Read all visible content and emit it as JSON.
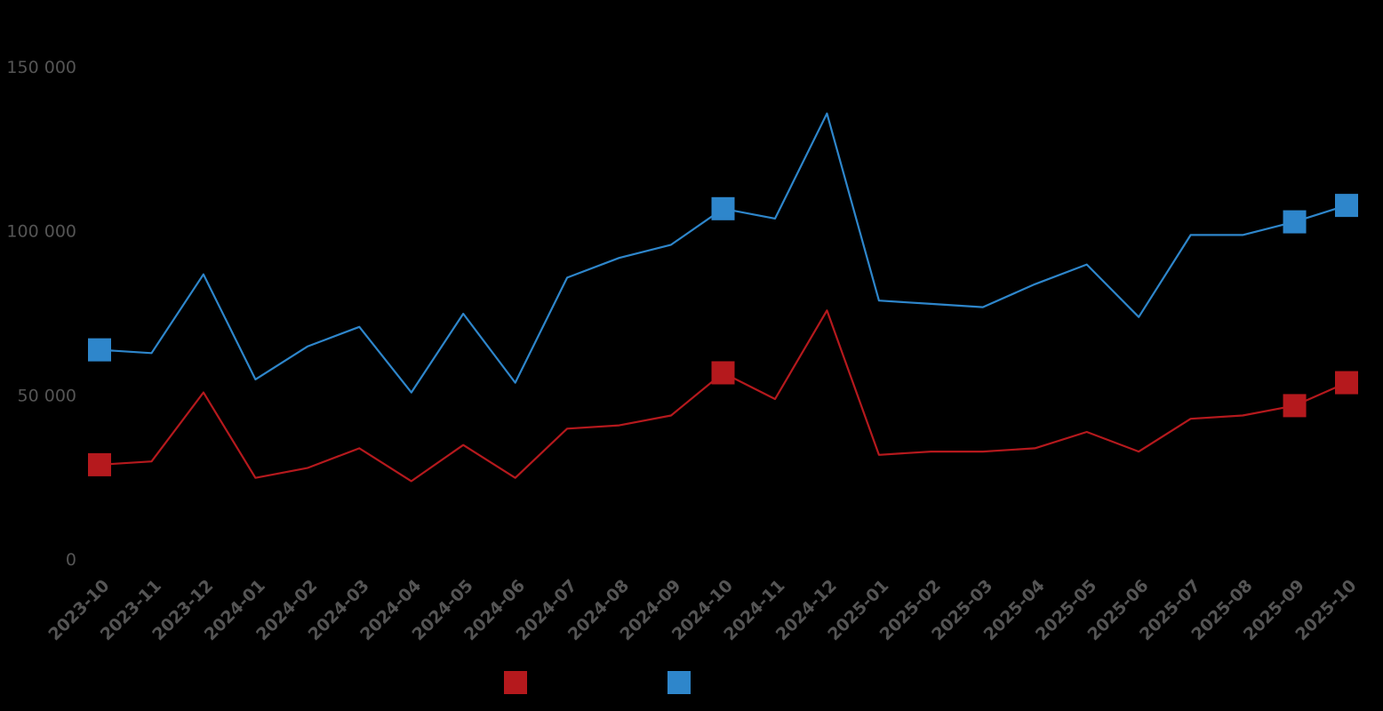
{
  "chart_data": {
    "type": "line",
    "title": "",
    "xlabel": "",
    "ylabel": "",
    "categories": [
      "2023-10",
      "2023-11",
      "2023-12",
      "2024-01",
      "2024-02",
      "2024-03",
      "2024-04",
      "2024-05",
      "2024-06",
      "2024-07",
      "2024-08",
      "2024-09",
      "2024-10",
      "2024-11",
      "2024-12",
      "2025-01",
      "2025-02",
      "2025-03",
      "2025-04",
      "2025-05",
      "2025-06",
      "2025-07",
      "2025-08",
      "2025-09",
      "2025-10"
    ],
    "ylim": [
      0,
      150000
    ],
    "yticks": [
      0,
      50000,
      100000,
      150000
    ],
    "ytick_labels": [
      "0",
      "50 000",
      "100 000",
      "150 000"
    ],
    "grid": false,
    "legend_position": "bottom-center",
    "series": [
      {
        "name": "",
        "color": "#b5191d",
        "marker_indices": [
          0,
          12,
          23,
          24
        ],
        "values": [
          29000,
          30000,
          51000,
          25000,
          28000,
          34000,
          24000,
          35000,
          25000,
          40000,
          41000,
          44000,
          57000,
          49000,
          76000,
          32000,
          33000,
          33000,
          34000,
          39000,
          33000,
          43000,
          44000,
          47000,
          54000
        ]
      },
      {
        "name": "",
        "color": "#2e86cb",
        "marker_indices": [
          0,
          12,
          23,
          24
        ],
        "values": [
          64000,
          63000,
          87000,
          55000,
          65000,
          71000,
          51000,
          75000,
          54000,
          86000,
          92000,
          96000,
          107000,
          104000,
          136000,
          79000,
          78000,
          77000,
          84000,
          90000,
          74000,
          99000,
          99000,
          103000,
          108000
        ]
      }
    ]
  }
}
